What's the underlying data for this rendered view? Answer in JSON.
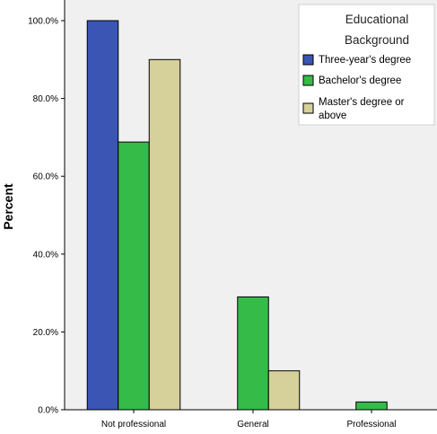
{
  "chart_data": {
    "type": "bar",
    "categories": [
      "Not professional",
      "General",
      "Professional"
    ],
    "series": [
      {
        "name": "Three-year's degree",
        "values": [
          100.0,
          0.0,
          0.0
        ]
      },
      {
        "name": "Bachelor's degree",
        "values": [
          68.8,
          29.0,
          2.0
        ]
      },
      {
        "name": "Master's degree or above",
        "values": [
          90.0,
          10.0,
          0.0
        ]
      }
    ],
    "title": "",
    "xlabel": "",
    "ylabel": "Percent",
    "ylim": [
      0,
      100
    ],
    "yticks": [
      "0.0%",
      "20.0%",
      "40.0%",
      "60.0%",
      "80.0%",
      "100.0%"
    ],
    "legend": {
      "title_lines": [
        "Educational",
        "Background"
      ],
      "label_lines": [
        [
          "Three-year's degree"
        ],
        [
          "Bachelor's degree"
        ],
        [
          "Master's degree or",
          "above"
        ]
      ],
      "position": "top-right"
    },
    "colors": {
      "plot_background": "#f0f0f0",
      "series": [
        "#3a55b4",
        "#35bb47",
        "#d6d09a"
      ],
      "bar_stroke": "#000000"
    },
    "grid": false
  }
}
